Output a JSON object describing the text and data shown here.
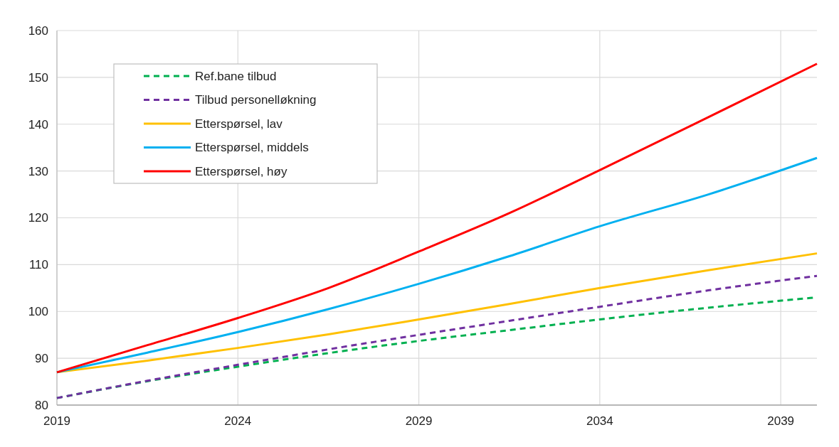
{
  "chart_data": {
    "type": "line",
    "xlim": [
      2019,
      2040
    ],
    "xticks": [
      2019,
      2024,
      2029,
      2034,
      2039
    ],
    "ylim": [
      80,
      160
    ],
    "yticks": [
      80,
      90,
      100,
      110,
      120,
      130,
      140,
      150,
      160
    ],
    "grid": true,
    "legend": "top left",
    "series": [
      {
        "name": "Ref.bane tilbud",
        "color": "#00b050",
        "line_style": "dashed",
        "x": [
          2019,
          2021.5,
          2024,
          2026.5,
          2029,
          2031.5,
          2034,
          2037,
          2040
        ],
        "values": [
          81.5,
          85.1,
          88.2,
          91.1,
          93.7,
          96,
          98.3,
          100.8,
          103
        ]
      },
      {
        "name": "Tilbud personelløkning",
        "color": "#7030a0",
        "line_style": "dashed",
        "x": [
          2019,
          2021.5,
          2024,
          2026.5,
          2029,
          2031.5,
          2034,
          2037,
          2040
        ],
        "values": [
          81.5,
          85.2,
          88.6,
          91.9,
          95,
          98,
          101,
          104.5,
          107.6
        ]
      },
      {
        "name": "Etterspørsel, lav",
        "color": "#ffc000",
        "line_style": "solid",
        "x": [
          2019,
          2021.5,
          2024,
          2026.5,
          2029,
          2031.5,
          2034,
          2037,
          2040
        ],
        "values": [
          87,
          89.5,
          92.2,
          95.1,
          98.3,
          101.6,
          105,
          108.8,
          112.4
        ]
      },
      {
        "name": "Etterspørsel, middels",
        "color": "#00b0f0",
        "line_style": "solid",
        "x": [
          2019,
          2021.5,
          2024,
          2026.5,
          2029,
          2031.5,
          2034,
          2037,
          2040
        ],
        "values": [
          87,
          91.2,
          95.6,
          100.5,
          105.9,
          111.8,
          118.2,
          125,
          132.8
        ]
      },
      {
        "name": "Etterspørsel, høy",
        "color": "#ff0000",
        "line_style": "solid",
        "x": [
          2019,
          2021.5,
          2024,
          2026.5,
          2029,
          2031.5,
          2034,
          2037,
          2040
        ],
        "values": [
          87,
          92.8,
          98.6,
          105,
          112.8,
          121,
          130.2,
          141.5,
          152.9
        ]
      }
    ]
  }
}
